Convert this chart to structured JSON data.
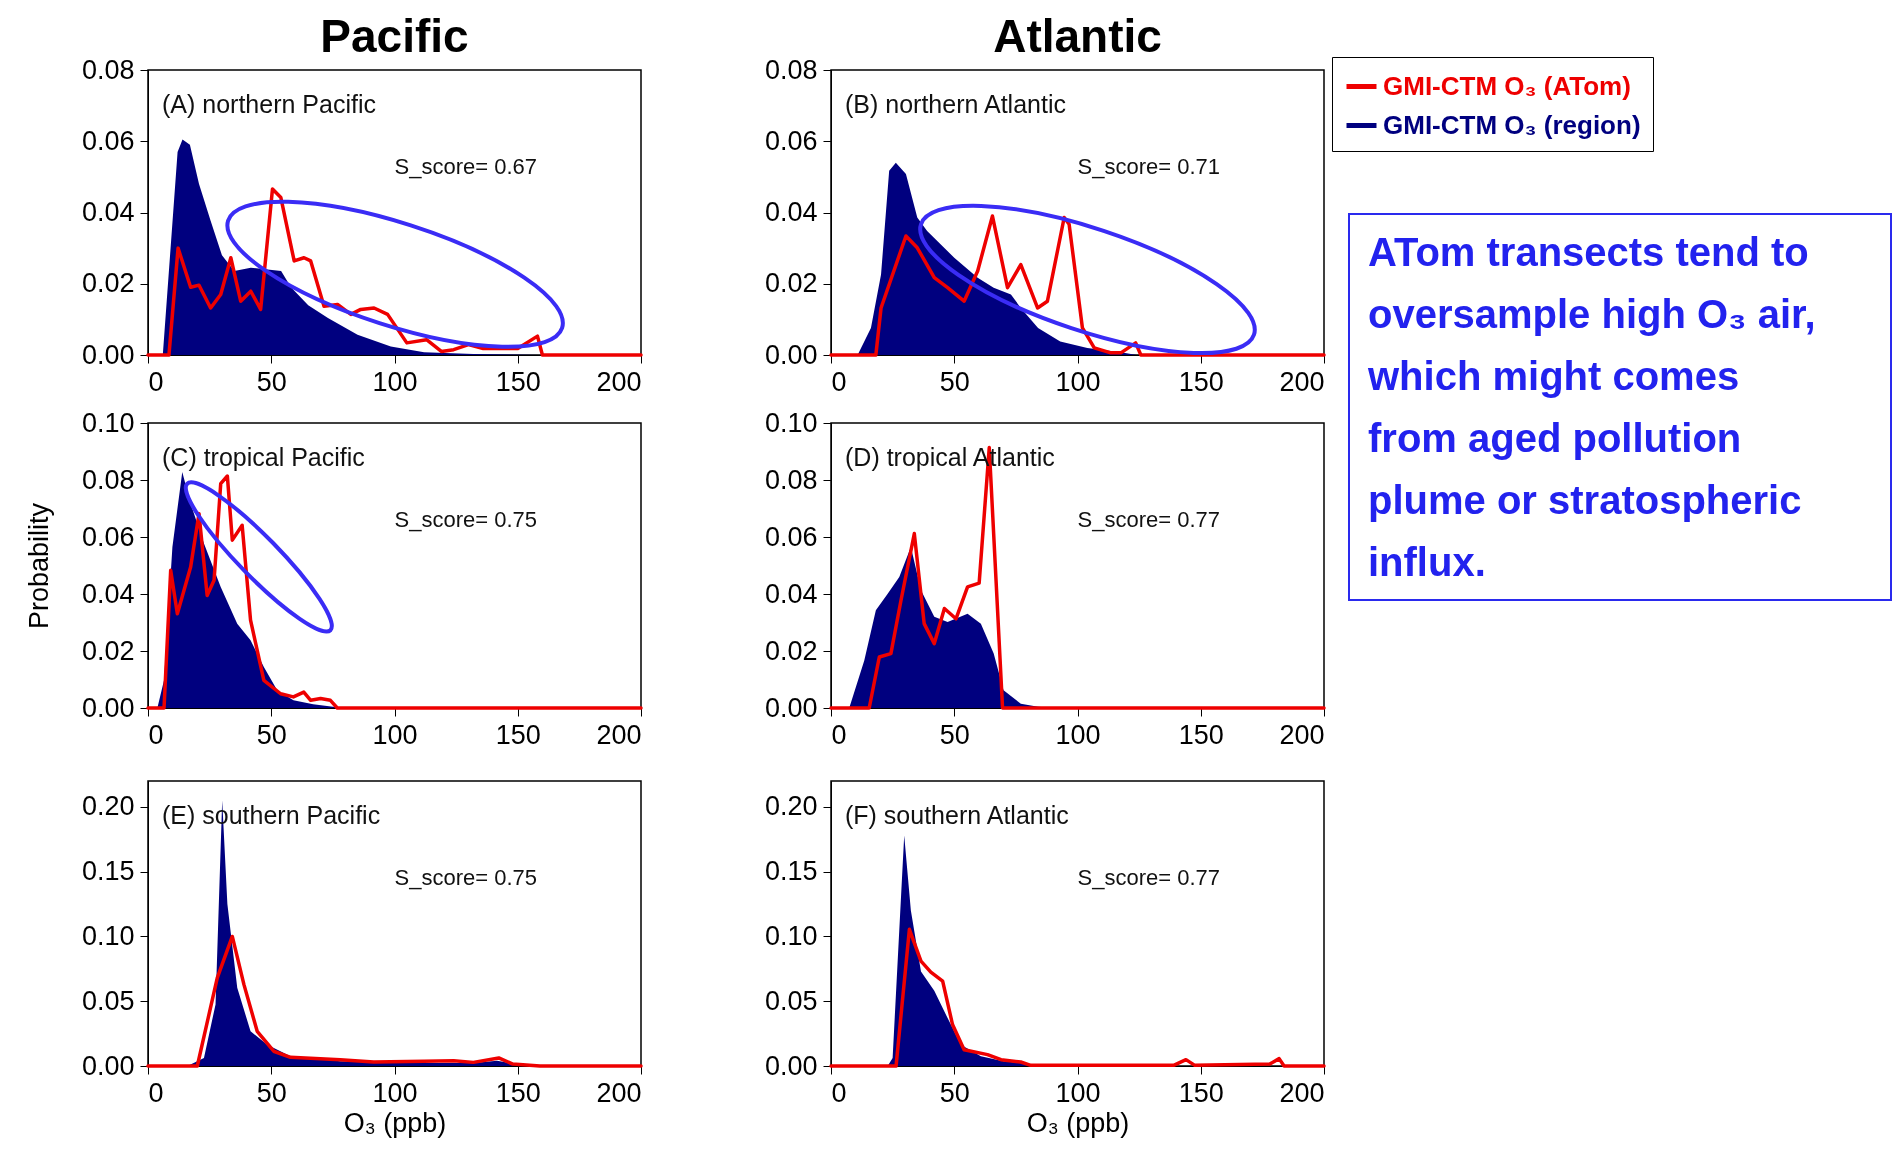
{
  "chart_data": [
    {
      "type": "area",
      "title": "Pacific",
      "annotations": [
        "(A) northern Pacific",
        "S_score= 0.67"
      ],
      "xlim": [
        0,
        200
      ],
      "xticks": [
        0,
        50,
        100,
        150,
        200
      ],
      "ylim": [
        0,
        0.08
      ],
      "yticks": [
        {
          "value": 0,
          "label": "0.00"
        },
        {
          "value": 0.02,
          "label": "0.02"
        },
        {
          "value": 0.04,
          "label": "0.04"
        },
        {
          "value": 0.06,
          "label": "0.06"
        },
        {
          "value": 0.08,
          "label": "0.08"
        }
      ],
      "legend": false,
      "series": [
        {
          "type": "area",
          "color": "#00007f",
          "x": [
            0,
            5,
            6,
            12,
            14,
            17,
            20.7,
            25.4,
            30,
            35,
            41.7,
            54,
            58,
            65,
            73,
            85,
            98.5,
            112,
            132,
            159,
            200
          ],
          "values": [
            0,
            0,
            0,
            0.057,
            0.0605,
            0.059,
            0.048,
            0.0377,
            0.028,
            0.0236,
            0.0245,
            0.0236,
            0.019,
            0.014,
            0.0104,
            0.0057,
            0.0024,
            0.0008,
            0.0003,
            0,
            0
          ]
        },
        {
          "type": "line",
          "color": "#ee0000",
          "x": [
            0,
            8.5,
            12.2,
            17.3,
            20.7,
            25.4,
            29.5,
            33.6,
            37.6,
            41.7,
            45.7,
            50.5,
            53.9,
            59.3,
            63.3,
            66,
            71.4,
            76.9,
            82.3,
            86.3,
            91.7,
            97.2,
            105,
            113,
            119,
            124,
            130,
            136,
            150,
            158,
            160,
            200
          ],
          "values": [
            0,
            0,
            0.03,
            0.019,
            0.0196,
            0.0132,
            0.017,
            0.0273,
            0.0151,
            0.0179,
            0.0128,
            0.0466,
            0.0442,
            0.0264,
            0.0273,
            0.0264,
            0.0137,
            0.0142,
            0.0114,
            0.0128,
            0.0132,
            0.0114,
            0.0034,
            0.0043,
            0.001,
            0.0015,
            0.0029,
            0.0018,
            0.0018,
            0.0053,
            0,
            0
          ]
        }
      ]
    },
    {
      "type": "area",
      "title": "Atlantic",
      "annotations": [
        "(B) northern Atlantic",
        "S_score= 0.71",
        "ATom transects tend to oversample high O₃ air, which might comes from aged pollution plume or stratospheric influx."
      ],
      "xlim": [
        0,
        200
      ],
      "xticks": [
        0,
        50,
        100,
        150,
        200
      ],
      "ylim": [
        0,
        0.08
      ],
      "yticks": [
        {
          "value": 0,
          "label": "0.00"
        },
        {
          "value": 0.02,
          "label": "0.02"
        },
        {
          "value": 0.04,
          "label": "0.04"
        },
        {
          "value": 0.06,
          "label": "0.06"
        },
        {
          "value": 0.08,
          "label": "0.08"
        }
      ],
      "legend": "top right",
      "series": [
        {
          "type": "line",
          "name": "GMI-CTM O₃ (ATom)",
          "color": "#ee0000",
          "x": [
            0,
            18.2,
            20.3,
            30.4,
            35,
            41.9,
            47.3,
            54,
            59.5,
            65.5,
            71.6,
            77,
            83.8,
            87.8,
            94.6,
            96.6,
            102,
            106.8,
            113.5,
            117.6,
            123.6,
            125.7,
            200
          ],
          "values": [
            0,
            0,
            0.0132,
            0.0334,
            0.0301,
            0.0217,
            0.0189,
            0.0151,
            0.0236,
            0.039,
            0.0189,
            0.0254,
            0.0132,
            0.0151,
            0.0386,
            0.0367,
            0.0076,
            0.002,
            0.0006,
            0.0006,
            0.0034,
            0,
            0
          ]
        },
        {
          "type": "area",
          "name": "GMI-CTM O₃ (region)",
          "color": "#00007f",
          "x": [
            0,
            10.8,
            16.2,
            20.3,
            23.6,
            26.3,
            30.4,
            35,
            39,
            50,
            59.5,
            66,
            73,
            77,
            84,
            93,
            104,
            117.6,
            124,
            200
          ],
          "values": [
            0,
            0,
            0.0076,
            0.0226,
            0.0517,
            0.054,
            0.0508,
            0.0386,
            0.0348,
            0.0273,
            0.0217,
            0.0189,
            0.017,
            0.0132,
            0.0076,
            0.0038,
            0.002,
            0.0008,
            0,
            0
          ]
        }
      ]
    },
    {
      "type": "area",
      "ylabel": "Probability",
      "annotations": [
        "(C) tropical Pacific",
        "S_score= 0.75"
      ],
      "xlim": [
        0,
        200
      ],
      "xticks": [
        0,
        50,
        100,
        150,
        200
      ],
      "ylim": [
        0,
        0.1
      ],
      "yticks": [
        {
          "value": 0,
          "label": "0.00"
        },
        {
          "value": 0.02,
          "label": "0.02"
        },
        {
          "value": 0.04,
          "label": "0.04"
        },
        {
          "value": 0.06,
          "label": "0.06"
        },
        {
          "value": 0.08,
          "label": "0.08"
        },
        {
          "value": 0.1,
          "label": "0.10"
        }
      ],
      "legend": false,
      "series": [
        {
          "type": "area",
          "color": "#00007f",
          "x": [
            0,
            3.8,
            6.5,
            9.9,
            13.9,
            17.3,
            22.7,
            29.5,
            36.2,
            41.6,
            47,
            52.4,
            59,
            67,
            75,
            81,
            200
          ],
          "values": [
            0,
            0,
            0.0097,
            0.0565,
            0.0828,
            0.0717,
            0.0577,
            0.0425,
            0.0296,
            0.0238,
            0.0144,
            0.0062,
            0.0027,
            0.0013,
            0.0004,
            0,
            0
          ]
        },
        {
          "type": "line",
          "color": "#ee0000",
          "x": [
            0,
            6.5,
            9.2,
            11.9,
            17.3,
            20.7,
            24,
            26.8,
            29.5,
            32.2,
            34.2,
            38.2,
            41.6,
            47,
            53.8,
            59,
            63.2,
            66,
            70,
            74,
            76.8,
            200
          ],
          "values": [
            0,
            0,
            0.0483,
            0.0331,
            0.0495,
            0.0682,
            0.0395,
            0.0448,
            0.0787,
            0.0814,
            0.0589,
            0.0641,
            0.0308,
            0.0097,
            0.005,
            0.0039,
            0.0056,
            0.0027,
            0.0033,
            0.0027,
            0,
            0
          ]
        }
      ]
    },
    {
      "type": "area",
      "annotations": [
        "(D) tropical Atlantic",
        "S_score= 0.77"
      ],
      "xlim": [
        0,
        200
      ],
      "xticks": [
        0,
        50,
        100,
        150,
        200
      ],
      "ylim": [
        0,
        0.1
      ],
      "yticks": [
        {
          "value": 0,
          "label": "0.00"
        },
        {
          "value": 0.02,
          "label": "0.02"
        },
        {
          "value": 0.04,
          "label": "0.04"
        },
        {
          "value": 0.06,
          "label": "0.06"
        },
        {
          "value": 0.08,
          "label": "0.08"
        },
        {
          "value": 0.1,
          "label": "0.10"
        }
      ],
      "legend": false,
      "series": [
        {
          "type": "area",
          "color": "#00007f",
          "x": [
            0,
            7.4,
            13.5,
            18.2,
            23,
            27.7,
            32.4,
            36.5,
            41.9,
            47.3,
            55.4,
            60.8,
            66,
            70,
            77,
            84,
            90.5,
            200
          ],
          "values": [
            0,
            0,
            0.0167,
            0.0343,
            0.0401,
            0.046,
            0.0565,
            0.0413,
            0.032,
            0.0302,
            0.0331,
            0.0296,
            0.0191,
            0.0062,
            0.0015,
            0.0004,
            0,
            0
          ]
        },
        {
          "type": "line",
          "color": "#ee0000",
          "x": [
            0,
            15.5,
            19.6,
            24.3,
            28.4,
            33.8,
            37.8,
            41.9,
            46,
            50.7,
            55.4,
            60.1,
            64.2,
            69.6,
            200
          ],
          "values": [
            0,
            0,
            0.0179,
            0.0191,
            0.0378,
            0.0612,
            0.0296,
            0.0226,
            0.0349,
            0.0313,
            0.0425,
            0.0438,
            0.0914,
            0,
            0
          ]
        }
      ]
    },
    {
      "type": "area",
      "xlabel": "O₃ (ppb)",
      "annotations": [
        "(E) southern Pacific",
        "S_score= 0.75"
      ],
      "xlim": [
        0,
        200
      ],
      "xticks": [
        0,
        50,
        100,
        150,
        200
      ],
      "ylim": [
        0,
        0.22
      ],
      "yticks": [
        {
          "value": 0,
          "label": "0.00"
        },
        {
          "value": 0.05,
          "label": "0.05"
        },
        {
          "value": 0.1,
          "label": "0.10"
        },
        {
          "value": 0.15,
          "label": "0.15"
        },
        {
          "value": 0.2,
          "label": "0.20"
        }
      ],
      "legend": false,
      "series": [
        {
          "type": "area",
          "color": "#00007f",
          "x": [
            0,
            16,
            22.7,
            27.4,
            30.1,
            32.2,
            36.2,
            41.6,
            48.4,
            57.8,
            78,
            105,
            132,
            141.6,
            152,
            172.7,
            200
          ],
          "values": [
            0,
            0,
            0.0062,
            0.0475,
            0.205,
            0.125,
            0.0604,
            0.0268,
            0.0165,
            0.0075,
            0.0036,
            0.0023,
            0.0023,
            0.0041,
            0.0005,
            0,
            0
          ]
        },
        {
          "type": "line",
          "color": "#ee0000",
          "x": [
            0,
            20,
            28.1,
            34.2,
            38.9,
            44.3,
            51,
            57.8,
            78,
            91.6,
            112,
            124,
            132,
            142.3,
            148,
            159,
            200
          ],
          "values": [
            0,
            0,
            0.068,
            0.1,
            0.063,
            0.0268,
            0.0114,
            0.0067,
            0.0049,
            0.0031,
            0.0036,
            0.0041,
            0.0028,
            0.0062,
            0.0015,
            0,
            0
          ]
        }
      ]
    },
    {
      "type": "area",
      "xlabel": "O₃ (ppb)",
      "annotations": [
        "(F) southern Atlantic",
        "S_score= 0.77"
      ],
      "xlim": [
        0,
        200
      ],
      "xticks": [
        0,
        50,
        100,
        150,
        200
      ],
      "ylim": [
        0,
        0.22
      ],
      "yticks": [
        {
          "value": 0,
          "label": "0.00"
        },
        {
          "value": 0.05,
          "label": "0.05"
        },
        {
          "value": 0.1,
          "label": "0.10"
        },
        {
          "value": 0.15,
          "label": "0.15"
        },
        {
          "value": 0.2,
          "label": "0.20"
        }
      ],
      "legend": false,
      "series": [
        {
          "type": "area",
          "color": "#00007f",
          "x": [
            0,
            23,
            25,
            29.7,
            32.4,
            36.5,
            41.9,
            47.3,
            52.7,
            60.8,
            70,
            84,
            97,
            200
          ],
          "values": [
            0,
            0,
            0.0062,
            0.178,
            0.12,
            0.073,
            0.058,
            0.037,
            0.0165,
            0.0075,
            0.0036,
            0.001,
            0,
            0
          ]
        },
        {
          "type": "line",
          "color": "#ee0000",
          "x": [
            0,
            26.4,
            31.8,
            36.5,
            40.5,
            45.3,
            49.3,
            54,
            63.5,
            69,
            77,
            81,
            139,
            144,
            147.6,
            178,
            181.8,
            183.8,
            200
          ],
          "values": [
            0,
            0,
            0.1055,
            0.081,
            0.0725,
            0.0655,
            0.032,
            0.0126,
            0.0088,
            0.0049,
            0.0031,
            0.0005,
            0.0005,
            0.0049,
            0.0005,
            0.0015,
            0.0057,
            0,
            0
          ]
        }
      ]
    }
  ]
}
